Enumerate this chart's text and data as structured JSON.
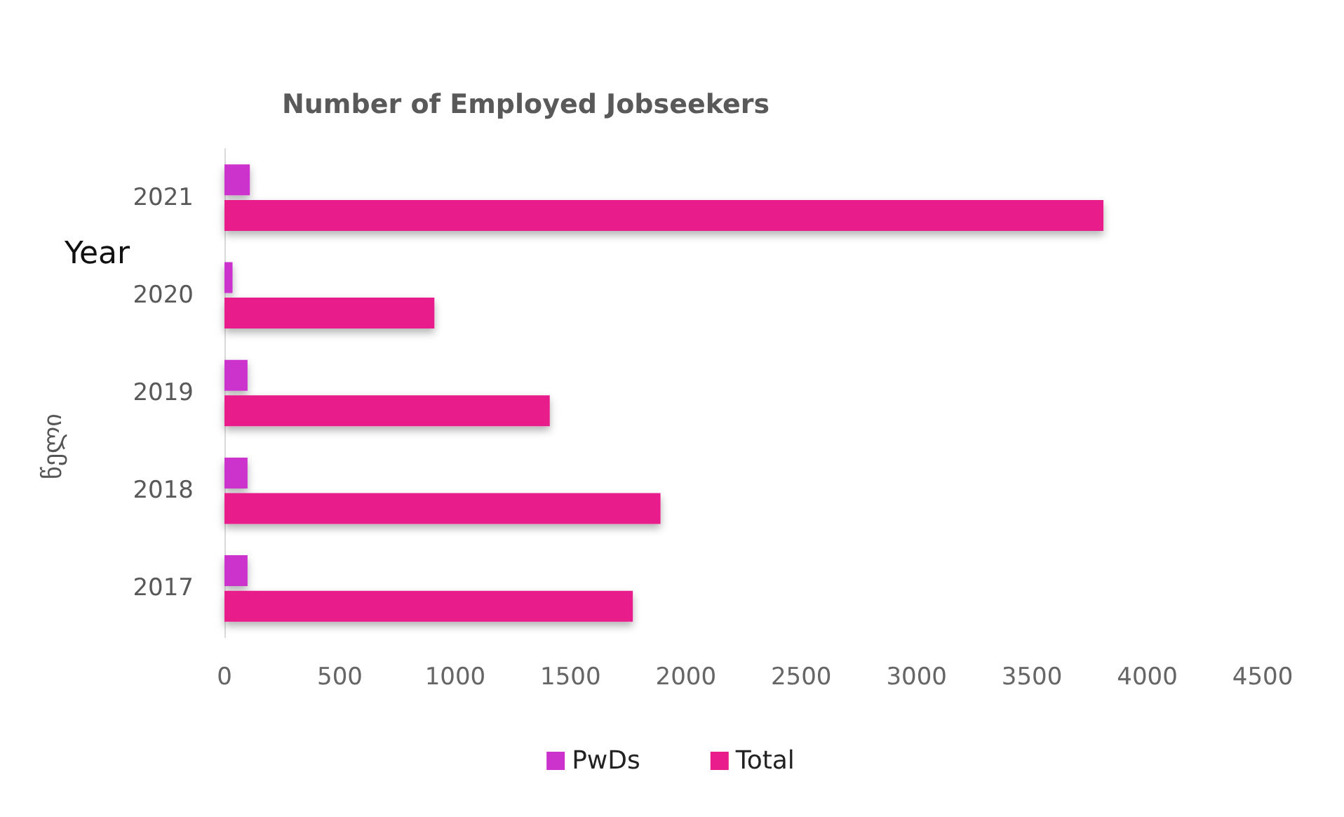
{
  "chart_data": {
    "type": "bar",
    "orientation": "horizontal",
    "title": "Number of Employed Jobseekers",
    "ylabel": "Year",
    "annotations": [
      "წელი"
    ],
    "categories": [
      "2021",
      "2020",
      "2019",
      "2018",
      "2017"
    ],
    "series": [
      {
        "name": "PwDs",
        "color": "#cc33cc",
        "values": [
          110,
          35,
          100,
          100,
          100
        ]
      },
      {
        "name": "Total",
        "color": "#e91e8c",
        "values": [
          3810,
          910,
          1410,
          1890,
          1770
        ]
      }
    ],
    "xlim": [
      0,
      4500
    ],
    "xticks": [
      0,
      500,
      1000,
      1500,
      2000,
      2500,
      3000,
      3500,
      4000,
      4500
    ],
    "grid": false,
    "legend": "bottom"
  }
}
